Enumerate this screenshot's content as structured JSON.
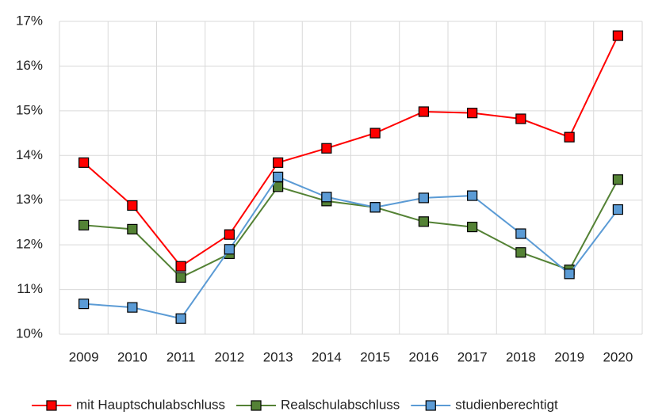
{
  "chart_data": {
    "type": "line",
    "categories": [
      "2009",
      "2010",
      "2011",
      "2012",
      "2013",
      "2014",
      "2015",
      "2016",
      "2017",
      "2018",
      "2019",
      "2020"
    ],
    "series": [
      {
        "name": "mit Hauptschulabschluss",
        "color": "#ff0000",
        "marker_color": "#ff0000",
        "values": [
          13.84,
          12.88,
          11.52,
          12.23,
          13.84,
          14.16,
          14.5,
          14.98,
          14.95,
          14.82,
          14.41,
          16.68
        ]
      },
      {
        "name": "Realschulabschluss",
        "color": "#548235",
        "marker_color": "#548235",
        "values": [
          12.44,
          12.35,
          11.27,
          11.8,
          13.3,
          12.98,
          12.84,
          12.52,
          12.4,
          11.83,
          11.44,
          13.46
        ]
      },
      {
        "name": "studienberechtigt",
        "color": "#5b9bd5",
        "marker_color": "#5b9bd5",
        "values": [
          10.68,
          10.6,
          10.35,
          11.9,
          13.52,
          13.07,
          12.84,
          13.05,
          13.1,
          12.25,
          11.35,
          12.79
        ]
      }
    ],
    "ylim": [
      10,
      17
    ],
    "yticks": [
      {
        "value": 10,
        "label": "10%"
      },
      {
        "value": 11,
        "label": "11%"
      },
      {
        "value": 12,
        "label": "12%"
      },
      {
        "value": 13,
        "label": "13%"
      },
      {
        "value": 14,
        "label": "14%"
      },
      {
        "value": 15,
        "label": "15%"
      },
      {
        "value": 16,
        "label": "16%"
      },
      {
        "value": 17,
        "label": "17%"
      }
    ],
    "grid": true,
    "legend": "bottom"
  }
}
